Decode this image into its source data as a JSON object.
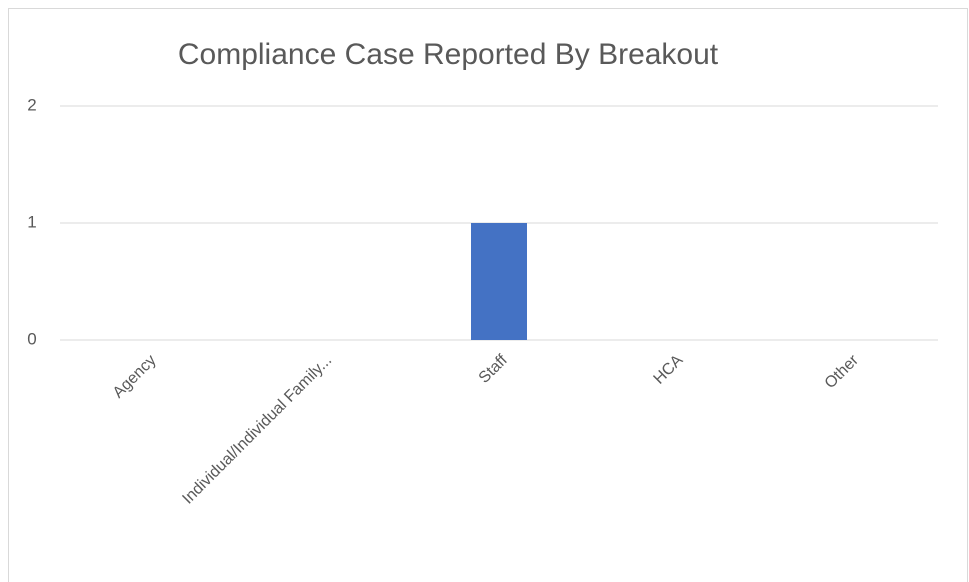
{
  "chart_data": {
    "type": "bar",
    "title": "Compliance Case Reported By Breakout",
    "categories": [
      "Agency",
      "Individual/Individual Family...",
      "Staff",
      "HCA",
      "Other"
    ],
    "values": [
      0,
      0,
      1,
      0,
      0
    ],
    "color": "#4472c4",
    "ylim": [
      0,
      2
    ],
    "yticks": [
      0,
      1,
      2
    ],
    "grid": true
  }
}
